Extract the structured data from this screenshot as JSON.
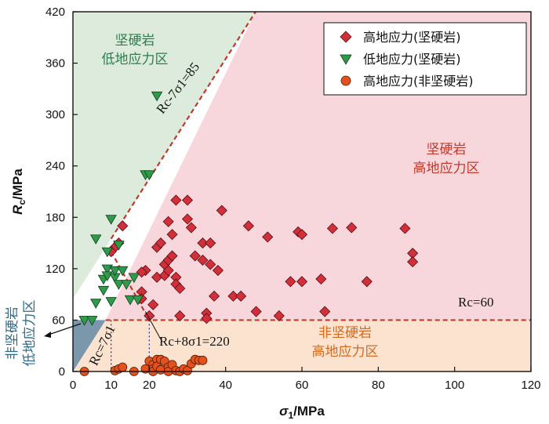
{
  "chart_data": {
    "type": "scatter",
    "xlabel_main": "σ",
    "xlabel_sub": "1",
    "xlabel_unit": "/MPa",
    "ylabel_main": "R",
    "ylabel_sub": "c",
    "ylabel_unit": "/MPa",
    "xlim": [
      0,
      120
    ],
    "ylim": [
      0,
      420
    ],
    "xticks": [
      0,
      20,
      40,
      60,
      80,
      100,
      120
    ],
    "yticks": [
      0,
      60,
      120,
      180,
      240,
      300,
      360,
      420
    ],
    "extra_xtick": {
      "value": 10,
      "label": "10"
    },
    "colors": {
      "zone_green": "#dcebdc",
      "zone_pink": "#f8d7dc",
      "zone_orange": "#fbe3cf",
      "zone_blue": "#7b97ab",
      "boundary": "#c0392b",
      "red_marker": "#d1303a",
      "green_marker": "#2e9a4a",
      "orange_marker": "#e2521d"
    },
    "zones": {
      "hard_low": [
        "坚硬岩",
        "低地应力区"
      ],
      "hard_high": [
        "坚硬岩",
        "高地应力区"
      ],
      "soft_high": [
        "非坚硬岩",
        "高地应力区"
      ],
      "soft_low": [
        "非坚硬岩",
        "低地应力区"
      ]
    },
    "annotations": {
      "line1": "Rc-7σ1=85",
      "line2": "Rc=60",
      "line3": "Rc+8σ1=220",
      "line4": "Rc=7σ1"
    },
    "series": [
      {
        "name": "高地应力(坚硬岩)",
        "marker": "diamond",
        "points": [
          [
            12,
            150
          ],
          [
            13,
            170
          ],
          [
            11,
            145
          ],
          [
            10,
            140
          ],
          [
            19,
            118
          ],
          [
            18,
            116
          ],
          [
            18,
            93
          ],
          [
            18,
            85
          ],
          [
            20,
            65
          ],
          [
            21,
            78
          ],
          [
            22,
            110
          ],
          [
            22,
            145
          ],
          [
            23,
            150
          ],
          [
            24,
            112
          ],
          [
            24,
            125
          ],
          [
            25,
            118
          ],
          [
            25,
            130
          ],
          [
            25,
            175
          ],
          [
            26,
            160
          ],
          [
            26,
            135
          ],
          [
            27,
            200
          ],
          [
            27,
            110
          ],
          [
            27,
            102
          ],
          [
            28,
            97
          ],
          [
            28,
            65
          ],
          [
            30,
            200
          ],
          [
            30,
            178
          ],
          [
            31,
            168
          ],
          [
            32,
            135
          ],
          [
            34,
            130
          ],
          [
            34,
            150
          ],
          [
            35,
            68
          ],
          [
            35,
            62
          ],
          [
            36,
            125
          ],
          [
            36,
            150
          ],
          [
            37,
            88
          ],
          [
            38,
            118
          ],
          [
            39,
            188
          ],
          [
            42,
            88
          ],
          [
            44,
            88
          ],
          [
            46,
            170
          ],
          [
            48,
            70
          ],
          [
            51,
            157
          ],
          [
            54,
            65
          ],
          [
            57,
            105
          ],
          [
            59,
            163
          ],
          [
            60,
            160
          ],
          [
            60,
            105
          ],
          [
            65,
            108
          ],
          [
            66,
            70
          ],
          [
            68,
            167
          ],
          [
            73,
            168
          ],
          [
            77,
            105
          ],
          [
            87,
            167
          ],
          [
            89,
            138
          ],
          [
            89,
            128
          ]
        ]
      },
      {
        "name": "低地应力(坚硬岩)",
        "marker": "triangle-down",
        "points": [
          [
            3,
            60
          ],
          [
            5,
            60
          ],
          [
            6,
            155
          ],
          [
            6,
            80
          ],
          [
            8,
            95
          ],
          [
            8,
            108
          ],
          [
            9,
            140
          ],
          [
            9,
            120
          ],
          [
            9,
            112
          ],
          [
            10,
            178
          ],
          [
            10,
            82
          ],
          [
            11,
            110
          ],
          [
            11,
            118
          ],
          [
            12,
            148
          ],
          [
            12,
            102
          ],
          [
            13,
            118
          ],
          [
            14,
            102
          ],
          [
            15,
            84
          ],
          [
            16,
            110
          ],
          [
            17,
            84
          ],
          [
            19,
            230
          ],
          [
            20,
            230
          ],
          [
            22,
            322
          ]
        ]
      },
      {
        "name": "高地应力(非坚硬岩)",
        "marker": "circle",
        "points": [
          [
            3,
            0
          ],
          [
            11,
            1
          ],
          [
            12,
            3
          ],
          [
            13,
            5
          ],
          [
            16,
            0
          ],
          [
            19,
            3
          ],
          [
            20,
            12
          ],
          [
            21,
            8
          ],
          [
            21,
            3
          ],
          [
            21,
            0
          ],
          [
            22,
            14
          ],
          [
            22,
            6
          ],
          [
            23,
            14
          ],
          [
            23,
            2
          ],
          [
            24,
            12
          ],
          [
            25,
            5
          ],
          [
            25,
            0
          ],
          [
            26,
            8
          ],
          [
            27,
            1
          ],
          [
            28,
            0
          ],
          [
            29,
            3
          ],
          [
            30,
            1
          ],
          [
            31,
            9
          ],
          [
            32,
            14
          ],
          [
            33,
            13
          ],
          [
            34,
            13
          ]
        ]
      }
    ]
  }
}
